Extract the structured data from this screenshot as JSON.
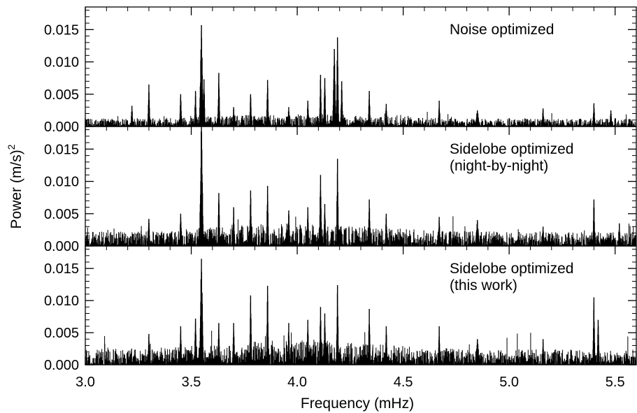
{
  "chart_data": {
    "type": "line",
    "xlabel": "Frequency (mHz)",
    "ylabel": "Power (m/s)",
    "ylabel_superscript": "2",
    "xlim": [
      3.0,
      5.6
    ],
    "ylim": [
      0.0,
      0.0185
    ],
    "x_ticks": [
      {
        "value": 3.0,
        "label": "3.0"
      },
      {
        "value": 3.5,
        "label": "3.5"
      },
      {
        "value": 4.0,
        "label": "4.0"
      },
      {
        "value": 4.5,
        "label": "4.5"
      },
      {
        "value": 5.0,
        "label": "5.0"
      },
      {
        "value": 5.5,
        "label": "5.5"
      }
    ],
    "y_ticks": [
      {
        "value": 0.0,
        "label": "0.000"
      },
      {
        "value": 0.005,
        "label": "0.005"
      },
      {
        "value": 0.01,
        "label": "0.010"
      },
      {
        "value": 0.015,
        "label": "0.015"
      }
    ],
    "line_color": "#000000",
    "panels": [
      {
        "annotation": [
          "Noise optimized"
        ],
        "noise_level": 0.0012,
        "peaks": [
          [
            3.22,
            0.0032
          ],
          [
            3.3,
            0.0065
          ],
          [
            3.45,
            0.005
          ],
          [
            3.52,
            0.0055
          ],
          [
            3.548,
            0.0157
          ],
          [
            3.56,
            0.0073
          ],
          [
            3.63,
            0.0083
          ],
          [
            3.7,
            0.003
          ],
          [
            3.78,
            0.005
          ],
          [
            3.86,
            0.0072
          ],
          [
            3.96,
            0.003
          ],
          [
            4.05,
            0.004
          ],
          [
            4.11,
            0.008
          ],
          [
            4.13,
            0.0075
          ],
          [
            4.175,
            0.012
          ],
          [
            4.19,
            0.0138
          ],
          [
            4.21,
            0.007
          ],
          [
            4.34,
            0.0055
          ],
          [
            4.42,
            0.0035
          ],
          [
            4.67,
            0.004
          ],
          [
            4.85,
            0.0025
          ],
          [
            5.16,
            0.0028
          ],
          [
            5.4,
            0.0036
          ],
          [
            5.48,
            0.0025
          ]
        ]
      },
      {
        "annotation": [
          "Sidelobe optimized",
          "(night-by-night)"
        ],
        "noise_level": 0.0022,
        "peaks": [
          [
            3.3,
            0.0042
          ],
          [
            3.45,
            0.005
          ],
          [
            3.548,
            0.0192
          ],
          [
            3.63,
            0.0082
          ],
          [
            3.7,
            0.006
          ],
          [
            3.78,
            0.0086
          ],
          [
            3.86,
            0.0093
          ],
          [
            3.96,
            0.0055
          ],
          [
            4.05,
            0.006
          ],
          [
            4.11,
            0.011
          ],
          [
            4.13,
            0.0065
          ],
          [
            4.19,
            0.0135
          ],
          [
            4.34,
            0.0072
          ],
          [
            4.42,
            0.005
          ],
          [
            4.67,
            0.0045
          ],
          [
            4.85,
            0.004
          ],
          [
            5.16,
            0.003
          ],
          [
            5.4,
            0.0072
          ],
          [
            5.52,
            0.0035
          ]
        ]
      },
      {
        "annotation": [
          "Sidelobe optimized",
          "(this work)"
        ],
        "noise_level": 0.0024,
        "peaks": [
          [
            3.3,
            0.0048
          ],
          [
            3.45,
            0.006
          ],
          [
            3.52,
            0.0072
          ],
          [
            3.548,
            0.0165
          ],
          [
            3.63,
            0.0065
          ],
          [
            3.7,
            0.0065
          ],
          [
            3.78,
            0.0108
          ],
          [
            3.86,
            0.0123
          ],
          [
            3.96,
            0.0065
          ],
          [
            4.05,
            0.007
          ],
          [
            4.11,
            0.009
          ],
          [
            4.13,
            0.008
          ],
          [
            4.19,
            0.0124
          ],
          [
            4.34,
            0.0087
          ],
          [
            4.42,
            0.006
          ],
          [
            4.67,
            0.006
          ],
          [
            4.85,
            0.004
          ],
          [
            5.16,
            0.004
          ],
          [
            5.4,
            0.0105
          ],
          [
            5.42,
            0.007
          ]
        ]
      }
    ]
  }
}
